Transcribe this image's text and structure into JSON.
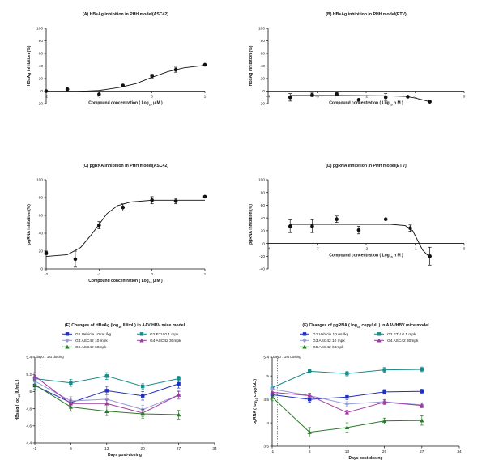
{
  "chart_data": [
    {
      "id": "A",
      "type": "scatter",
      "title": "(A)  HBsAg inhibition in PHH model(ASC42)",
      "xlabel": "Compound concentration ( Log10 μ M )",
      "ylabel": "HBsAg inhibition (%)",
      "xlim": [
        -2,
        1
      ],
      "ylim": [
        -20,
        100
      ],
      "xticks": [
        -2,
        -1,
        0,
        1
      ],
      "yticks": [
        -20,
        0,
        20,
        40,
        60,
        80,
        100
      ],
      "points": [
        {
          "x": -2.0,
          "y": 0,
          "err": 0
        },
        {
          "x": -1.6,
          "y": 3,
          "err": 0
        },
        {
          "x": -1.0,
          "y": -5,
          "err": 0
        },
        {
          "x": -0.55,
          "y": 9,
          "err": 0
        },
        {
          "x": 0.0,
          "y": 24,
          "err": 3
        },
        {
          "x": 0.45,
          "y": 34,
          "err": 4
        },
        {
          "x": 1.0,
          "y": 42,
          "err": 0
        }
      ],
      "fit": [
        [
          -2,
          -1
        ],
        [
          -1.4,
          -0.5
        ],
        [
          -1,
          1
        ],
        [
          -0.6,
          6
        ],
        [
          -0.3,
          12
        ],
        [
          0,
          22
        ],
        [
          0.3,
          31
        ],
        [
          0.6,
          37
        ],
        [
          1,
          41
        ]
      ]
    },
    {
      "id": "B",
      "type": "scatter",
      "title": "(B)  HBsAg inhibition in PHH model(ETV)",
      "xlabel": "Compound concentration ( Log10 n M )",
      "ylabel": "HBsAg inhibition (%)",
      "xlim": [
        -4,
        0
      ],
      "ylim": [
        -20,
        100
      ],
      "xticks": [
        -4,
        -3,
        -2,
        -1,
        0
      ],
      "yticks": [
        -20,
        0,
        20,
        40,
        60,
        80,
        100
      ],
      "points": [
        {
          "x": -3.55,
          "y": -10,
          "err": 6
        },
        {
          "x": -3.1,
          "y": -6,
          "err": 3
        },
        {
          "x": -2.6,
          "y": -5,
          "err": 3
        },
        {
          "x": -2.15,
          "y": -14,
          "err": 0
        },
        {
          "x": -1.6,
          "y": -10,
          "err": 6
        },
        {
          "x": -1.15,
          "y": -9,
          "err": 0
        },
        {
          "x": -0.7,
          "y": -17,
          "err": 0
        }
      ],
      "fit": [
        [
          -3.55,
          -7
        ],
        [
          -2.5,
          -7
        ],
        [
          -1.6,
          -7.5
        ],
        [
          -1.2,
          -8.5
        ],
        [
          -1.0,
          -11
        ],
        [
          -0.85,
          -14
        ],
        [
          -0.7,
          -17
        ]
      ]
    },
    {
      "id": "C",
      "type": "scatter",
      "title": "(C)  pgRNA inhibition in PHH model(ASC42)",
      "xlabel": "Compound concentration ( Log10 μ M )",
      "ylabel": "pgRNA inhibition (%)",
      "xlim": [
        -2,
        1
      ],
      "ylim": [
        0,
        100
      ],
      "xticks": [
        -2,
        -1,
        0,
        1
      ],
      "yticks": [
        0,
        20,
        40,
        60,
        80,
        100
      ],
      "points": [
        {
          "x": -2.0,
          "y": 18,
          "err": 2
        },
        {
          "x": -1.45,
          "y": 11,
          "err": 9
        },
        {
          "x": -1.0,
          "y": 49,
          "err": 4
        },
        {
          "x": -0.55,
          "y": 69,
          "err": 4
        },
        {
          "x": 0.0,
          "y": 77,
          "err": 4
        },
        {
          "x": 0.45,
          "y": 76,
          "err": 3
        },
        {
          "x": 1.0,
          "y": 81,
          "err": 0
        }
      ],
      "fit": [
        [
          -2,
          14
        ],
        [
          -1.6,
          16
        ],
        [
          -1.35,
          24
        ],
        [
          -1.15,
          38
        ],
        [
          -1.0,
          50
        ],
        [
          -0.85,
          62
        ],
        [
          -0.65,
          71
        ],
        [
          -0.4,
          75
        ],
        [
          0,
          77
        ],
        [
          1,
          77
        ]
      ]
    },
    {
      "id": "D",
      "type": "scatter",
      "title": "(D)  pgRNA inhibition in PHH model(ETV)",
      "xlabel": "Compound concentration ( Log10 n M )",
      "ylabel": "pgRNA inhibition (%)",
      "xlim": [
        -4,
        0
      ],
      "ylim": [
        -40,
        100
      ],
      "xticks": [
        -4,
        -3,
        -2,
        -1,
        0
      ],
      "yticks": [
        -40,
        -20,
        0,
        20,
        40,
        60,
        80,
        100
      ],
      "points": [
        {
          "x": -3.55,
          "y": 27,
          "err": 10
        },
        {
          "x": -3.1,
          "y": 27,
          "err": 10
        },
        {
          "x": -2.6,
          "y": 38,
          "err": 5
        },
        {
          "x": -2.15,
          "y": 21,
          "err": 6
        },
        {
          "x": -1.6,
          "y": 38,
          "err": 0
        },
        {
          "x": -1.1,
          "y": 24,
          "err": 5
        },
        {
          "x": -0.7,
          "y": -20,
          "err": 14
        }
      ],
      "fit": [
        [
          -3.55,
          30
        ],
        [
          -2.5,
          30
        ],
        [
          -1.5,
          30
        ],
        [
          -1.2,
          28
        ],
        [
          -1.05,
          20
        ],
        [
          -0.95,
          5
        ],
        [
          -0.85,
          -10
        ],
        [
          -0.75,
          -18
        ],
        [
          -0.7,
          -20
        ]
      ]
    },
    {
      "id": "E",
      "type": "line",
      "title": "(E)  Changes of HBsAg (log10 IU/mL) in AAV/HBV mice model",
      "xlabel": "Days post-dosing",
      "ylabel": "HBsAg ( log10 IU/mL )",
      "xlim": [
        -1,
        34
      ],
      "ylim": [
        4.4,
        5.4
      ],
      "xticks": [
        -1,
        6,
        13,
        20,
        27,
        34
      ],
      "yticks": [
        4.4,
        4.6,
        4.8,
        5.0,
        5.2,
        5.4
      ],
      "annotation": "day0 : 1st dosing",
      "x": [
        -1,
        6,
        13,
        20,
        27
      ],
      "series": [
        {
          "name": "G1 Vehicle 10 mL/kg",
          "color": "#1f2fbf",
          "marker": "square",
          "values": [
            5.07,
            4.87,
            5.01,
            4.95,
            5.09
          ],
          "err": [
            0.05,
            0.05,
            0.05,
            0.05,
            0.05
          ]
        },
        {
          "name": "G2 ETV 0.1 mpk",
          "color": "#1a8a8a",
          "marker": "square",
          "values": [
            5.15,
            5.1,
            5.18,
            5.06,
            5.15
          ],
          "err": [
            0.04,
            0.04,
            0.04,
            0.03,
            0.03
          ]
        },
        {
          "name": "G3 ASC42 10 mpk",
          "color": "#9a9ad6",
          "marker": "diamond",
          "values": [
            5.12,
            4.89,
            4.91,
            4.79,
            4.96
          ],
          "err": [
            0.05,
            0.05,
            0.05,
            0.05,
            0.05
          ]
        },
        {
          "name": "G4 ASC42 30mpk",
          "color": "#a03aa0",
          "marker": "triangle",
          "values": [
            5.18,
            4.86,
            4.86,
            4.75,
            4.96
          ],
          "err": [
            0.04,
            0.04,
            0.04,
            0.04,
            0.04
          ]
        },
        {
          "name": "G5 ASC42 60mpk",
          "color": "#2a7a2a",
          "marker": "triangle",
          "values": [
            5.08,
            4.82,
            4.77,
            4.74,
            4.73
          ],
          "err": [
            0.05,
            0.05,
            0.05,
            0.05,
            0.05
          ]
        }
      ]
    },
    {
      "id": "F",
      "type": "line",
      "title": "(F)  Changes of pgRNA ( log10 copy/μL ) in AAV/HBV mice model",
      "xlabel": "Days post-dosing",
      "ylabel": "pgRNA ( log10 copy/μL )",
      "xlim": [
        -1,
        34
      ],
      "ylim": [
        3.5,
        5.4
      ],
      "xticks": [
        -1,
        6,
        13,
        20,
        27,
        34
      ],
      "yticks": [
        3.5,
        4.0,
        4.5,
        5.0,
        5.4
      ],
      "annotation": "day0 : 1st dosing",
      "x": [
        -1,
        6,
        13,
        20,
        27
      ],
      "series": [
        {
          "name": "G1 Vehicle 10 mL/kg",
          "color": "#1f2fbf",
          "marker": "square",
          "values": [
            4.6,
            4.5,
            4.55,
            4.66,
            4.67
          ],
          "err": [
            0.06,
            0.06,
            0.06,
            0.05,
            0.05
          ]
        },
        {
          "name": "G2 ETV 0.1 mpk",
          "color": "#1a8a8a",
          "marker": "square",
          "values": [
            4.75,
            5.1,
            5.05,
            5.13,
            5.14
          ],
          "err": [
            0.04,
            0.04,
            0.05,
            0.05,
            0.05
          ]
        },
        {
          "name": "G3 ASC42 10 mpk",
          "color": "#9a9ad6",
          "marker": "diamond",
          "values": [
            4.72,
            4.58,
            4.4,
            4.45,
            4.38
          ],
          "err": [
            0.05,
            0.05,
            0.05,
            0.05,
            0.05
          ]
        },
        {
          "name": "G4 ASC42 30mpk",
          "color": "#a03aa0",
          "marker": "triangle",
          "values": [
            4.65,
            4.58,
            4.22,
            4.44,
            4.37
          ],
          "err": [
            0.05,
            0.05,
            0.05,
            0.05,
            0.05
          ]
        },
        {
          "name": "G5 ASC42 60mpk",
          "color": "#2a7a2a",
          "marker": "triangle",
          "values": [
            4.55,
            3.8,
            3.9,
            4.04,
            4.05
          ],
          "err": [
            0.08,
            0.1,
            0.1,
            0.06,
            0.1
          ]
        }
      ]
    }
  ]
}
